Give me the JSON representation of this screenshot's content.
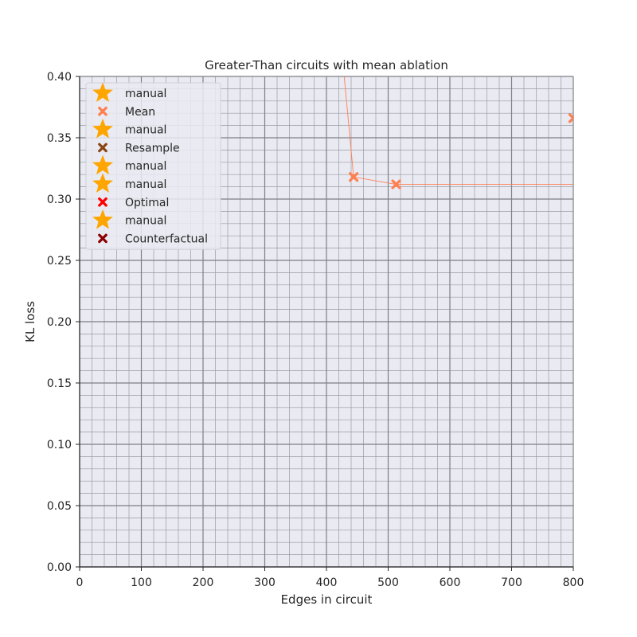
{
  "chart_data": {
    "type": "scatter",
    "title": "Greater-Than circuits with mean ablation",
    "xlabel": "Edges in circuit",
    "ylabel": "KL loss",
    "xlim": [
      0,
      800
    ],
    "ylim": [
      0,
      0.4
    ],
    "xticks": [
      "0",
      "100",
      "200",
      "300",
      "400",
      "500",
      "600",
      "700",
      "800"
    ],
    "yticks": [
      "0.00",
      "0.05",
      "0.10",
      "0.15",
      "0.20",
      "0.25",
      "0.30",
      "0.35",
      "0.40"
    ],
    "xtick_values": [
      0,
      100,
      200,
      300,
      400,
      500,
      600,
      700,
      800
    ],
    "ytick_values": [
      0,
      0.05,
      0.1,
      0.15,
      0.2,
      0.25,
      0.3,
      0.35,
      0.4
    ],
    "grid": true,
    "minor_grid": true,
    "legend_position": "top-left",
    "series": [
      {
        "name": "Mean",
        "marker": "x",
        "color": "#ff7f50",
        "points": [
          {
            "x": 425,
            "y": 0.42
          },
          {
            "x": 444,
            "y": 0.318
          },
          {
            "x": 513,
            "y": 0.312
          },
          {
            "x": 800,
            "y": 0.312
          }
        ],
        "markers": [
          {
            "x": 444,
            "y": 0.318
          },
          {
            "x": 513,
            "y": 0.312
          },
          {
            "x": 800,
            "y": 0.366
          }
        ]
      }
    ],
    "legend": [
      {
        "label": "manual",
        "marker": "star",
        "color": "#ffa500"
      },
      {
        "label": "Mean",
        "marker": "x",
        "color": "#ff7f50"
      },
      {
        "label": "manual",
        "marker": "star",
        "color": "#ffa500"
      },
      {
        "label": "Resample",
        "marker": "x",
        "color": "#8b4513"
      },
      {
        "label": "manual",
        "marker": "star",
        "color": "#ffa500"
      },
      {
        "label": "manual",
        "marker": "star",
        "color": "#ffa500"
      },
      {
        "label": "Optimal",
        "marker": "x",
        "color": "#ff0000"
      },
      {
        "label": "manual",
        "marker": "star",
        "color": "#ffa500"
      },
      {
        "label": "Counterfactual",
        "marker": "x",
        "color": "#8b0000"
      }
    ]
  }
}
